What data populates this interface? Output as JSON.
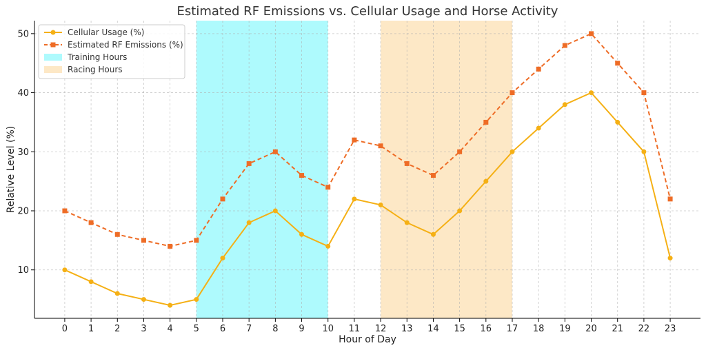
{
  "chart_data": {
    "type": "line",
    "title": "Estimated RF Emissions vs. Cellular Usage and Horse Activity",
    "xlabel": "Hour of Day",
    "ylabel": "Relative Level (%)",
    "x": [
      0,
      1,
      2,
      3,
      4,
      5,
      6,
      7,
      8,
      9,
      10,
      11,
      12,
      13,
      14,
      15,
      16,
      17,
      18,
      19,
      20,
      21,
      22,
      23
    ],
    "xlim": [
      -1.15,
      24.15
    ],
    "ylim": [
      1.8,
      52.2
    ],
    "yticks": [
      10,
      20,
      30,
      40,
      50
    ],
    "grid": true,
    "legend_position": "top-left",
    "series": [
      {
        "name": "Cellular Usage (%)",
        "color": "#f5b015",
        "marker": "circle",
        "line_style": "solid",
        "values": [
          10,
          8,
          6,
          5,
          4,
          5,
          12,
          18,
          20,
          16,
          14,
          22,
          21,
          18,
          16,
          20,
          25,
          30,
          34,
          38,
          40,
          35,
          30,
          12
        ]
      },
      {
        "name": "Estimated RF Emissions (%)",
        "color": "#ee6c26",
        "marker": "square",
        "line_style": "dashed",
        "values": [
          20,
          18,
          16,
          15,
          14,
          15,
          22,
          28,
          30,
          26,
          24,
          32,
          31,
          28,
          26,
          30,
          35,
          40,
          44,
          48,
          50,
          45,
          40,
          22
        ]
      }
    ],
    "spans": [
      {
        "name": "Training Hours",
        "start": 5,
        "end": 10,
        "color": "#aefafd"
      },
      {
        "name": "Racing Hours",
        "start": 12,
        "end": 17,
        "color": "#fde8c6"
      }
    ]
  }
}
